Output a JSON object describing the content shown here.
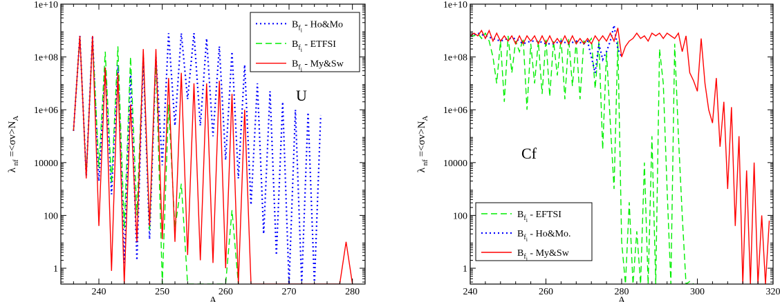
{
  "chart_data": [
    {
      "type": "line",
      "annotation": "U",
      "xlabel": "A",
      "ylabel": "λ nf =<σv>N A",
      "ylabel_parts": {
        "lambda": "λ",
        "sub1": "nf",
        "mid": "=<σv>N",
        "sub2": "A"
      },
      "xlim": [
        234,
        282
      ],
      "ylim_log10": [
        -0.6,
        10
      ],
      "x_ticks": [
        240,
        250,
        260,
        270,
        280
      ],
      "x_tick_labels": [
        "240",
        "250",
        "260",
        "270",
        "280"
      ],
      "y_ticks_log10": [
        0,
        2,
        4,
        6,
        8,
        10
      ],
      "y_tick_labels": [
        "1",
        "100",
        "10000",
        "1e+06",
        "1e+08",
        "1e+10"
      ],
      "legend_position": "top-right",
      "series": [
        {
          "name": "B - Ho&Mo",
          "name_parts": {
            "b": "B",
            "sub": "f",
            "subsub": "i",
            "rest": " - Ho&Mo"
          },
          "color": "#0000ff",
          "style": "dotted",
          "x": [
            236,
            237,
            238,
            239,
            240,
            241,
            242,
            243,
            244,
            245,
            246,
            247,
            248,
            249,
            250,
            251,
            252,
            253,
            254,
            255,
            256,
            257,
            258,
            259,
            260,
            261,
            262,
            263,
            264,
            265,
            266,
            267,
            268,
            269,
            270,
            271,
            272,
            273,
            274,
            275
          ],
          "log10_y": [
            5.2,
            8.8,
            3.5,
            8.8,
            3.3,
            7.6,
            2.8,
            7.7,
            0.2,
            7.4,
            0.3,
            8.0,
            1.1,
            8.0,
            3.9,
            8.9,
            5.4,
            8.9,
            6.4,
            8.9,
            5.4,
            8.7,
            5.0,
            8.4,
            4.1,
            8.2,
            3.4,
            7.7,
            2.4,
            7.0,
            1.3,
            6.7,
            0.5,
            6.3,
            -0.6,
            6.0,
            -0.6,
            5.9,
            -0.6,
            5.8
          ]
        },
        {
          "name": "B - ETFSI",
          "name_parts": {
            "b": "B",
            "sub": "f",
            "subsub": "i",
            "rest": " - ETFSI"
          },
          "color": "#00ee00",
          "style": "dashed",
          "x": [
            236,
            237,
            238,
            239,
            240,
            241,
            242,
            243,
            244,
            245,
            246,
            247,
            248,
            249,
            250,
            251,
            252,
            253,
            254,
            255,
            256,
            257,
            258,
            259,
            260,
            261,
            262
          ],
          "log10_y": [
            5.2,
            8.8,
            3.5,
            8.7,
            3.8,
            8.2,
            3.2,
            8.4,
            1.5,
            8.0,
            2.0,
            8.2,
            1.4,
            8.0,
            -0.6,
            6.2,
            1.5,
            3.2,
            -0.6,
            -0.6,
            -0.6,
            -0.6,
            -0.6,
            -0.6,
            -0.6,
            2.2,
            -0.6
          ]
        },
        {
          "name": "B - My&Sw",
          "name_parts": {
            "b": "B",
            "sub": "f",
            "subsub": "i",
            "rest": " - My&Sw"
          },
          "color": "#ff0000",
          "style": "solid",
          "x": [
            236,
            237,
            238,
            239,
            240,
            241,
            242,
            243,
            244,
            245,
            246,
            247,
            248,
            249,
            250,
            251,
            252,
            253,
            254,
            255,
            256,
            257,
            258,
            259,
            260,
            261,
            262,
            263,
            264,
            265,
            266,
            267,
            268,
            269,
            270,
            271,
            272,
            273,
            274,
            275,
            276,
            277,
            278,
            279,
            280
          ],
          "log10_y": [
            5.2,
            8.8,
            3.4,
            8.8,
            1.6,
            7.6,
            -0.1,
            7.4,
            -0.6,
            6.2,
            1.0,
            8.3,
            1.6,
            8.3,
            1.1,
            7.2,
            1.0,
            7.4,
            0.5,
            7.0,
            0.3,
            7.0,
            0.2,
            7.1,
            0.0,
            6.6,
            -0.6,
            6.0,
            -0.6,
            -0.6,
            -0.6,
            -0.6,
            -0.6,
            -0.6,
            -0.6,
            -0.6,
            -0.6,
            -0.6,
            -0.6,
            -0.6,
            -0.6,
            -0.6,
            -0.6,
            1.0,
            -0.6
          ]
        }
      ]
    },
    {
      "type": "line",
      "annotation": "Cf",
      "xlabel": "A",
      "ylabel": "λ nf =<σv>N A",
      "ylabel_parts": {
        "lambda": "λ",
        "sub1": "nf",
        "mid": "=<σv>N",
        "sub2": "A"
      },
      "xlim": [
        240,
        320
      ],
      "ylim_log10": [
        -0.6,
        10
      ],
      "x_ticks": [
        240,
        260,
        280,
        300,
        320
      ],
      "x_tick_labels": [
        "240",
        "260",
        "280",
        "300",
        "320"
      ],
      "y_ticks_log10": [
        0,
        2,
        4,
        6,
        8,
        10
      ],
      "y_tick_labels": [
        "1",
        "100",
        "10000",
        "1e+06",
        "1e+08",
        "1e+10"
      ],
      "legend_position": "bottom-left",
      "series": [
        {
          "name": "B - EFTSI",
          "name_parts": {
            "b": "B",
            "sub": "f",
            "subsub": "i",
            "rest": " - EFTSI"
          },
          "color": "#00ee00",
          "style": "dashed",
          "x": [
            240,
            241,
            242,
            243,
            244,
            245,
            246,
            247,
            248,
            249,
            250,
            251,
            252,
            253,
            254,
            255,
            256,
            257,
            258,
            259,
            260,
            261,
            262,
            263,
            264,
            265,
            266,
            267,
            268,
            269,
            270,
            271,
            272,
            273,
            274,
            275,
            276,
            277,
            278,
            279,
            280,
            281,
            282,
            283,
            284,
            285,
            286,
            287,
            288,
            289,
            290,
            291,
            292,
            293,
            294,
            295,
            296,
            297,
            298,
            299
          ],
          "log10_y": [
            8.8,
            8.8,
            8.9,
            8.7,
            8.9,
            8.6,
            8.0,
            7.0,
            8.6,
            6.3,
            8.8,
            7.4,
            8.6,
            8.2,
            8.7,
            6.0,
            8.5,
            7.0,
            8.6,
            6.6,
            8.7,
            6.5,
            8.6,
            7.3,
            8.7,
            6.4,
            8.7,
            6.9,
            8.6,
            6.4,
            8.6,
            8.5,
            8.7,
            6.8,
            8.6,
            4.5,
            8.2,
            5.5,
            3.0,
            8.6,
            1.0,
            -0.6,
            2.5,
            -0.6,
            1.4,
            -0.6,
            4.0,
            -0.6,
            5.0,
            -0.6,
            8.3,
            7.0,
            3.0,
            -0.6,
            8.5,
            5.0,
            2.0,
            -0.6,
            -0.5,
            -0.6
          ]
        },
        {
          "name": "B - Ho&Mo.",
          "name_parts": {
            "b": "B",
            "sub": "f",
            "subsub": "i",
            "rest": " - Ho&Mo."
          },
          "color": "#0000ff",
          "style": "dotted",
          "x": [
            240,
            242,
            244,
            246,
            248,
            250,
            252,
            254,
            256,
            258,
            260,
            262,
            264,
            266,
            268,
            270,
            271,
            272,
            273,
            274,
            275,
            276,
            277,
            278,
            279,
            280
          ],
          "log10_y": [
            8.8,
            8.9,
            8.8,
            8.7,
            8.6,
            8.7,
            8.7,
            8.5,
            8.6,
            8.6,
            8.5,
            8.5,
            8.6,
            8.5,
            8.6,
            8.5,
            8.6,
            8.0,
            7.4,
            8.5,
            7.9,
            8.2,
            8.6,
            9.2,
            8.3,
            8.0
          ]
        },
        {
          "name": "B - My&Sw",
          "name_parts": {
            "b": "B",
            "sub": "f",
            "subsub": "i",
            "rest": " - My&Sw"
          },
          "color": "#ff0000",
          "style": "solid",
          "x": [
            240,
            241,
            242,
            243,
            244,
            245,
            246,
            247,
            248,
            249,
            250,
            251,
            252,
            253,
            254,
            255,
            256,
            257,
            258,
            259,
            260,
            261,
            262,
            263,
            264,
            265,
            266,
            267,
            268,
            269,
            270,
            271,
            272,
            273,
            274,
            275,
            276,
            277,
            278,
            279,
            280,
            281,
            282,
            283,
            284,
            285,
            286,
            287,
            288,
            289,
            290,
            291,
            292,
            293,
            294,
            295,
            296,
            297,
            298,
            299,
            300,
            301,
            302,
            303,
            304,
            305,
            306,
            307,
            308,
            309,
            310,
            311,
            312,
            313,
            314,
            315,
            316,
            317,
            318,
            319
          ],
          "log10_y": [
            8.8,
            8.9,
            8.8,
            9.0,
            8.7,
            9.0,
            8.6,
            8.9,
            8.6,
            8.8,
            8.6,
            8.8,
            8.5,
            8.8,
            8.5,
            8.8,
            8.6,
            8.8,
            8.5,
            8.8,
            8.5,
            8.8,
            8.5,
            8.7,
            8.5,
            8.8,
            8.5,
            8.8,
            8.5,
            8.7,
            8.5,
            8.7,
            8.5,
            8.8,
            8.6,
            8.8,
            8.6,
            8.9,
            8.6,
            9.1,
            8.0,
            8.4,
            8.6,
            8.7,
            8.9,
            8.7,
            8.8,
            8.6,
            8.9,
            8.8,
            8.9,
            8.7,
            8.9,
            8.8,
            8.7,
            8.9,
            8.2,
            8.8,
            7.4,
            7.1,
            6.7,
            8.7,
            7.0,
            6.0,
            5.5,
            7.2,
            4.6,
            6.3,
            3.0,
            6.1,
            1.6,
            5.0,
            -0.6,
            3.7,
            -0.6,
            4.0,
            -0.6,
            2.0,
            -0.6,
            1.8
          ]
        }
      ]
    }
  ]
}
